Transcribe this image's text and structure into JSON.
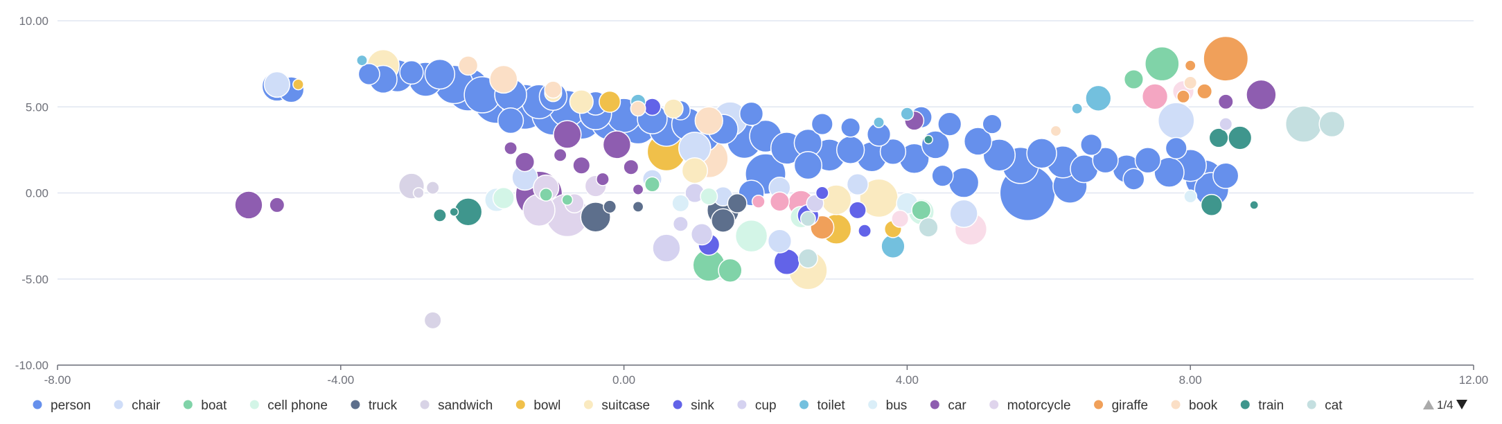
{
  "chart_data": {
    "type": "scatter",
    "subtype": "bubble",
    "title": "",
    "xlabel": "",
    "ylabel": "",
    "xlim": [
      -8,
      12
    ],
    "ylim": [
      -10,
      10
    ],
    "x_ticks": [
      -8,
      -4,
      0,
      4,
      8,
      12
    ],
    "y_ticks": [
      -10,
      -5,
      0,
      5,
      10
    ],
    "x_tick_labels": [
      "-8.00",
      "-4.00",
      "0.00",
      "4.00",
      "8.00",
      "12.00"
    ],
    "y_tick_labels": [
      "-10.00",
      "-5.00",
      "0.00",
      "5.00",
      "10.00"
    ],
    "grid": "horizontal",
    "legend_position": "bottom",
    "legend_page": "1/4",
    "series": [
      {
        "name": "person",
        "color": "#6690ec",
        "points": [
          [
            -4.9,
            6.2,
            1.4
          ],
          [
            -4.7,
            6.0,
            1.2
          ],
          [
            -3.6,
            6.9,
            1.0
          ],
          [
            -3.4,
            6.6,
            1.3
          ],
          [
            -3.2,
            6.8,
            1.5
          ],
          [
            -3.0,
            7.0,
            1.1
          ],
          [
            -2.8,
            6.6,
            1.6
          ],
          [
            -2.6,
            6.9,
            1.4
          ],
          [
            -2.4,
            6.3,
            1.8
          ],
          [
            -2.2,
            6.0,
            2.0
          ],
          [
            -2.0,
            5.7,
            1.7
          ],
          [
            -1.8,
            5.4,
            2.2
          ],
          [
            -1.6,
            5.7,
            1.5
          ],
          [
            -1.4,
            5.0,
            2.1
          ],
          [
            -1.2,
            5.3,
            1.6
          ],
          [
            -1.0,
            4.6,
            2.0
          ],
          [
            -0.8,
            4.9,
            1.7
          ],
          [
            -0.6,
            4.3,
            1.9
          ],
          [
            -0.4,
            4.6,
            1.5
          ],
          [
            -0.2,
            4.2,
            1.8
          ],
          [
            0.0,
            4.5,
            1.6
          ],
          [
            0.2,
            3.9,
            1.7
          ],
          [
            0.4,
            4.3,
            1.4
          ],
          [
            0.6,
            3.7,
            1.6
          ],
          [
            0.9,
            4.0,
            1.5
          ],
          [
            1.1,
            3.4,
            1.7
          ],
          [
            1.4,
            3.7,
            1.4
          ],
          [
            1.7,
            3.0,
            1.6
          ],
          [
            2.0,
            3.3,
            1.5
          ],
          [
            2.3,
            2.6,
            1.5
          ],
          [
            2.6,
            2.9,
            1.3
          ],
          [
            2.9,
            2.2,
            1.5
          ],
          [
            3.2,
            2.5,
            1.3
          ],
          [
            3.5,
            2.1,
            1.4
          ],
          [
            3.8,
            2.4,
            1.2
          ],
          [
            4.1,
            2.0,
            1.4
          ],
          [
            4.4,
            2.8,
            1.3
          ],
          [
            4.2,
            4.4,
            1.0
          ],
          [
            4.6,
            4.0,
            1.1
          ],
          [
            5.0,
            3.0,
            1.3
          ],
          [
            5.3,
            2.2,
            1.5
          ],
          [
            5.6,
            1.6,
            1.7
          ],
          [
            5.9,
            2.3,
            1.4
          ],
          [
            6.2,
            1.8,
            1.5
          ],
          [
            6.5,
            1.4,
            1.3
          ],
          [
            6.8,
            1.9,
            1.2
          ],
          [
            7.1,
            1.4,
            1.3
          ],
          [
            7.4,
            1.9,
            1.2
          ],
          [
            7.7,
            1.2,
            1.4
          ],
          [
            8.0,
            1.6,
            1.5
          ],
          [
            8.2,
            0.8,
            1.8
          ],
          [
            8.3,
            0.2,
            1.6
          ],
          [
            8.5,
            1.0,
            1.2
          ],
          [
            5.7,
            0.0,
            2.6
          ],
          [
            6.3,
            0.4,
            1.6
          ],
          [
            4.8,
            0.6,
            1.4
          ],
          [
            2.0,
            1.1,
            1.9
          ],
          [
            1.8,
            0.0,
            1.2
          ],
          [
            2.6,
            1.6,
            1.3
          ],
          [
            3.6,
            3.4,
            1.1
          ],
          [
            3.2,
            3.8,
            0.9
          ],
          [
            2.8,
            4.0,
            1.0
          ],
          [
            0.8,
            4.8,
            0.9
          ],
          [
            1.8,
            4.6,
            1.1
          ],
          [
            -1.6,
            4.2,
            1.2
          ],
          [
            -1.0,
            5.6,
            1.3
          ],
          [
            -0.4,
            5.2,
            1.1
          ],
          [
            7.8,
            2.6,
            1.0
          ],
          [
            7.2,
            0.8,
            1.0
          ],
          [
            6.6,
            2.8,
            1.0
          ],
          [
            5.2,
            4.0,
            0.9
          ],
          [
            4.5,
            1.0,
            1.0
          ]
        ]
      },
      {
        "name": "chair",
        "color": "#cfddf8",
        "points": [
          [
            -4.9,
            6.3,
            1.2
          ],
          [
            7.8,
            4.2,
            1.7
          ],
          [
            1.5,
            4.3,
            1.6
          ],
          [
            1.0,
            2.6,
            1.5
          ],
          [
            -1.4,
            0.9,
            1.2
          ],
          [
            4.8,
            -1.2,
            1.3
          ],
          [
            2.2,
            0.3,
            1.0
          ],
          [
            3.3,
            0.5,
            1.0
          ],
          [
            1.4,
            -0.2,
            0.9
          ],
          [
            0.4,
            0.8,
            0.9
          ],
          [
            2.2,
            -2.8,
            1.1
          ]
        ]
      },
      {
        "name": "boat",
        "color": "#80d3a8",
        "points": [
          [
            7.6,
            7.5,
            1.6
          ],
          [
            1.2,
            -4.2,
            1.5
          ],
          [
            1.5,
            -4.5,
            1.1
          ],
          [
            0.4,
            0.5,
            0.7
          ],
          [
            4.2,
            -1.0,
            0.9
          ],
          [
            7.2,
            6.6,
            0.9
          ],
          [
            -1.1,
            -0.1,
            0.6
          ],
          [
            -0.8,
            -0.4,
            0.5
          ]
        ]
      },
      {
        "name": "cell phone",
        "color": "#d3f5e7",
        "points": [
          [
            1.8,
            -2.5,
            1.5
          ],
          [
            4.2,
            -1.1,
            1.2
          ],
          [
            -1.7,
            -0.3,
            1.0
          ],
          [
            2.5,
            -1.4,
            1.0
          ],
          [
            1.2,
            -0.2,
            0.8
          ]
        ]
      },
      {
        "name": "truck",
        "color": "#5d6f8c",
        "points": [
          [
            -0.4,
            -1.4,
            1.4
          ],
          [
            1.4,
            -1.0,
            1.5
          ],
          [
            1.4,
            -1.6,
            1.1
          ],
          [
            1.6,
            -0.6,
            0.9
          ],
          [
            -0.2,
            -0.8,
            0.6
          ],
          [
            0.2,
            -0.8,
            0.5
          ]
        ]
      },
      {
        "name": "sandwich",
        "color": "#d8d3e6",
        "points": [
          [
            -3.0,
            0.4,
            1.2
          ],
          [
            -2.7,
            0.3,
            0.6
          ],
          [
            -2.7,
            -7.4,
            0.8
          ],
          [
            -2.9,
            0.0,
            0.5
          ]
        ]
      },
      {
        "name": "bowl",
        "color": "#f0c04a",
        "points": [
          [
            0.6,
            2.4,
            1.8
          ],
          [
            3.0,
            -2.1,
            1.4
          ],
          [
            -0.2,
            5.3,
            1.0
          ],
          [
            3.8,
            -2.1,
            0.8
          ],
          [
            -4.6,
            6.3,
            0.5
          ]
        ]
      },
      {
        "name": "suitcase",
        "color": "#faeac0",
        "points": [
          [
            -3.4,
            7.4,
            1.5
          ],
          [
            2.6,
            -4.5,
            1.8
          ],
          [
            3.6,
            -0.3,
            1.8
          ],
          [
            3.0,
            -0.4,
            1.4
          ],
          [
            1.0,
            1.3,
            1.2
          ],
          [
            -0.6,
            5.3,
            1.1
          ],
          [
            0.7,
            4.9,
            0.9
          ],
          [
            -1.0,
            5.8,
            0.8
          ]
        ]
      },
      {
        "name": "sink",
        "color": "#6263e8",
        "points": [
          [
            2.3,
            -4.0,
            1.2
          ],
          [
            2.6,
            -1.3,
            1.0
          ],
          [
            1.2,
            -3.0,
            1.0
          ],
          [
            0.4,
            5.0,
            0.8
          ],
          [
            3.3,
            -1.0,
            0.8
          ],
          [
            3.4,
            -2.2,
            0.6
          ],
          [
            2.8,
            0.0,
            0.6
          ]
        ]
      },
      {
        "name": "cup",
        "color": "#d5d2f0",
        "points": [
          [
            0.6,
            -3.2,
            1.3
          ],
          [
            1.1,
            -2.4,
            1.0
          ],
          [
            1.0,
            0.0,
            0.9
          ],
          [
            2.7,
            -0.6,
            0.8
          ],
          [
            0.8,
            -1.8,
            0.7
          ],
          [
            8.5,
            4.0,
            0.6
          ]
        ]
      },
      {
        "name": "toilet",
        "color": "#73c0de",
        "points": [
          [
            6.7,
            5.5,
            1.2
          ],
          [
            3.8,
            -3.1,
            1.1
          ],
          [
            0.2,
            5.3,
            0.7
          ],
          [
            4.0,
            4.6,
            0.6
          ],
          [
            6.4,
            4.9,
            0.5
          ],
          [
            -3.7,
            7.7,
            0.5
          ],
          [
            3.6,
            4.1,
            0.5
          ]
        ]
      },
      {
        "name": "bus",
        "color": "#daeef8",
        "points": [
          [
            -1.8,
            -0.4,
            1.1
          ],
          [
            0.8,
            -0.6,
            0.8
          ],
          [
            4.0,
            -0.6,
            1.0
          ],
          [
            8.0,
            -0.2,
            0.6
          ]
        ]
      },
      {
        "name": "car",
        "color": "#8e5db0",
        "points": [
          [
            -1.2,
            -0.1,
            2.2
          ],
          [
            -0.8,
            3.4,
            1.3
          ],
          [
            -0.1,
            2.8,
            1.3
          ],
          [
            9.0,
            5.7,
            1.4
          ],
          [
            -5.3,
            -0.7,
            1.3
          ],
          [
            -4.9,
            -0.7,
            0.7
          ],
          [
            4.1,
            4.2,
            0.9
          ],
          [
            -1.4,
            1.8,
            0.9
          ],
          [
            -0.6,
            1.6,
            0.8
          ],
          [
            0.1,
            1.5,
            0.7
          ],
          [
            -0.3,
            0.8,
            0.6
          ],
          [
            -0.9,
            2.2,
            0.6
          ],
          [
            -1.6,
            2.6,
            0.6
          ],
          [
            0.2,
            0.2,
            0.5
          ],
          [
            8.5,
            5.3,
            0.7
          ]
        ]
      },
      {
        "name": "motorcycle",
        "color": "#dfd4ec",
        "points": [
          [
            -0.8,
            -1.3,
            2.0
          ],
          [
            -1.2,
            -1.0,
            1.5
          ],
          [
            -1.1,
            0.3,
            1.2
          ],
          [
            -0.4,
            0.4,
            1.0
          ],
          [
            -0.7,
            -0.6,
            0.9
          ]
        ]
      },
      {
        "name": "giraffe",
        "color": "#f0a05a",
        "points": [
          [
            8.5,
            7.8,
            2.1
          ],
          [
            2.8,
            -2.0,
            1.1
          ],
          [
            8.2,
            5.9,
            0.7
          ],
          [
            7.9,
            5.6,
            0.6
          ],
          [
            8.0,
            7.4,
            0.5
          ]
        ]
      },
      {
        "name": "book",
        "color": "#fbdfc6",
        "points": [
          [
            1.2,
            4.2,
            1.3
          ],
          [
            1.2,
            2.0,
            1.8
          ],
          [
            -1.7,
            6.6,
            1.3
          ],
          [
            -2.2,
            7.4,
            0.9
          ],
          [
            -1.0,
            6.0,
            0.8
          ],
          [
            0.2,
            4.9,
            0.7
          ],
          [
            6.1,
            3.6,
            0.5
          ],
          [
            8.0,
            6.4,
            0.6
          ]
        ]
      },
      {
        "name": "train",
        "color": "#3f968d",
        "points": [
          [
            -2.2,
            -1.1,
            1.3
          ],
          [
            8.7,
            3.2,
            1.1
          ],
          [
            8.4,
            3.2,
            0.9
          ],
          [
            8.3,
            -0.7,
            1.0
          ],
          [
            -2.6,
            -1.3,
            0.6
          ],
          [
            8.9,
            -0.7,
            0.4
          ],
          [
            4.3,
            3.1,
            0.4
          ],
          [
            -2.4,
            -1.1,
            0.4
          ]
        ]
      },
      {
        "name": "cat",
        "color": "#c4dfe0",
        "points": [
          [
            9.6,
            4.0,
            1.7
          ],
          [
            10.0,
            4.0,
            1.2
          ],
          [
            2.6,
            -3.8,
            0.9
          ],
          [
            4.3,
            -2.0,
            0.9
          ],
          [
            2.6,
            -1.5,
            0.7
          ]
        ]
      },
      {
        "name": "",
        "color": "#f4a6c2",
        "points": [
          [
            2.5,
            -0.6,
            1.2
          ],
          [
            2.2,
            -0.5,
            0.9
          ],
          [
            7.5,
            5.6,
            1.2
          ],
          [
            1.9,
            -0.5,
            0.6
          ]
        ]
      },
      {
        "name": "",
        "color": "#f9dce8",
        "points": [
          [
            4.9,
            -2.1,
            1.5
          ],
          [
            7.9,
            5.9,
            1.0
          ],
          [
            3.9,
            -1.5,
            0.8
          ]
        ]
      }
    ]
  },
  "legend": {
    "items": [
      {
        "label": "person",
        "color": "#6690ec"
      },
      {
        "label": "chair",
        "color": "#cfddf8"
      },
      {
        "label": "boat",
        "color": "#80d3a8"
      },
      {
        "label": "cell phone",
        "color": "#d3f5e7"
      },
      {
        "label": "truck",
        "color": "#5d6f8c"
      },
      {
        "label": "sandwich",
        "color": "#d8d3e6"
      },
      {
        "label": "bowl",
        "color": "#f0c04a"
      },
      {
        "label": "suitcase",
        "color": "#faeac0"
      },
      {
        "label": "sink",
        "color": "#6263e8"
      },
      {
        "label": "cup",
        "color": "#d5d2f0"
      },
      {
        "label": "toilet",
        "color": "#73c0de"
      },
      {
        "label": "bus",
        "color": "#daeef8"
      },
      {
        "label": "car",
        "color": "#8e5db0"
      },
      {
        "label": "motorcycle",
        "color": "#dfd4ec"
      },
      {
        "label": "giraffe",
        "color": "#f0a05a"
      },
      {
        "label": "book",
        "color": "#fbdfc6"
      },
      {
        "label": "train",
        "color": "#3f968d"
      },
      {
        "label": "cat",
        "color": "#c4dfe0"
      }
    ],
    "pager": {
      "text": "1/4",
      "prev_icon": "triangle-up-icon",
      "next_icon": "triangle-down-icon"
    }
  }
}
